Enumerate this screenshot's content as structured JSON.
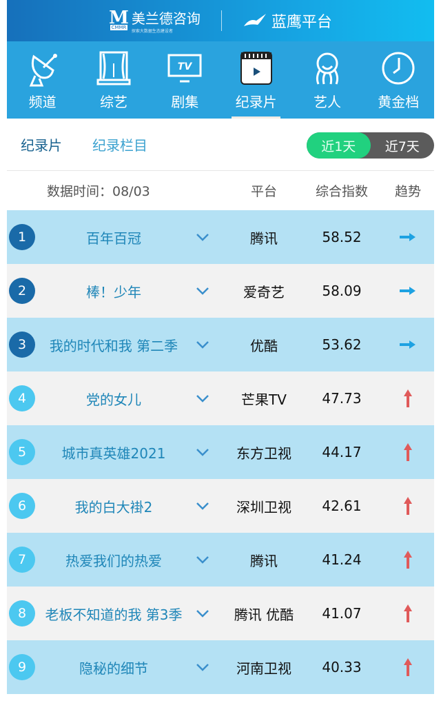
{
  "header": {
    "brand_mark": "M",
    "brand_sub": "CMMR",
    "brand_name": "美兰德咨询",
    "brand_slogan": "探索大数据生态建设者",
    "platform_name": "蓝鹰平台"
  },
  "nav": {
    "items": [
      {
        "label": "频道",
        "icon": "satellite-dish-icon"
      },
      {
        "label": "综艺",
        "icon": "stage-curtain-icon"
      },
      {
        "label": "剧集",
        "icon": "tv-icon"
      },
      {
        "label": "纪录片",
        "icon": "video-clapper-icon",
        "active": true
      },
      {
        "label": "艺人",
        "icon": "artist-icon"
      },
      {
        "label": "黄金档",
        "icon": "clock-icon"
      }
    ]
  },
  "tabs": {
    "items": [
      "纪录片",
      "纪录栏目"
    ],
    "active": "纪录片"
  },
  "range_toggle": {
    "options": [
      "近1天",
      "近7天"
    ],
    "selected": "近1天"
  },
  "table": {
    "data_time_label": "数据时间：08/03",
    "columns": [
      "平台",
      "综合指数",
      "趋势"
    ],
    "rows": [
      {
        "rank": "1",
        "title": "百年百冠",
        "platform": "腾讯",
        "score": "58.52",
        "trend": "flat"
      },
      {
        "rank": "2",
        "title": "棒！少年",
        "platform": "爱奇艺",
        "score": "58.09",
        "trend": "flat"
      },
      {
        "rank": "3",
        "title": "我的时代和我 第二季",
        "platform": "优酷",
        "score": "53.62",
        "trend": "flat"
      },
      {
        "rank": "4",
        "title": "党的女儿",
        "platform": "芒果TV",
        "score": "47.73",
        "trend": "up"
      },
      {
        "rank": "5",
        "title": "城市真英雄2021",
        "platform": "东方卫视",
        "score": "44.17",
        "trend": "up"
      },
      {
        "rank": "6",
        "title": "我的白大褂2",
        "platform": "深圳卫视",
        "score": "42.61",
        "trend": "up"
      },
      {
        "rank": "7",
        "title": "热爱我们的热爱",
        "platform": "腾讯",
        "score": "41.24",
        "trend": "up"
      },
      {
        "rank": "8",
        "title": "老板不知道的我 第3季",
        "platform": "腾讯 优酷",
        "score": "41.07",
        "trend": "up"
      },
      {
        "rank": "9",
        "title": "隐秘的细节",
        "platform": "河南卫视",
        "score": "40.33",
        "trend": "up"
      }
    ]
  },
  "colors": {
    "top_rank": "#1a6aa8",
    "other_rank": "#4cc8f0",
    "trend_flat": "#1ea2e2",
    "trend_up": "#e05a5a",
    "toggle_on": "#21d17f"
  }
}
